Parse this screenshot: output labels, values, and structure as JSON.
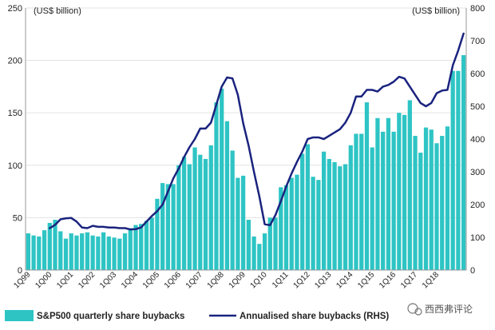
{
  "chart_data": {
    "type": "bar+line",
    "left_axis": {
      "unit_label": "(US$ billion)",
      "ylim": [
        0,
        250
      ],
      "ticks": [
        "0",
        "50",
        "100",
        "150",
        "200",
        "250"
      ]
    },
    "right_axis": {
      "unit_label": "(US$ billion)",
      "ylim": [
        0,
        800
      ],
      "ticks": [
        "0",
        "100",
        "200",
        "300",
        "400",
        "500",
        "600",
        "700",
        "800"
      ]
    },
    "x_tick_labels": [
      "1Q99",
      "1Q00",
      "1Q01",
      "1Q02",
      "1Q03",
      "1Q04",
      "1Q05",
      "1Q06",
      "1Q07",
      "1Q08",
      "1Q09",
      "1Q10",
      "1Q11",
      "1Q12",
      "1Q13",
      "1Q14",
      "1Q15",
      "1Q16",
      "1Q17",
      "1Q18"
    ],
    "series": [
      {
        "name": "S&P500 quarterly share buybacks",
        "kind": "bar",
        "axis": "left",
        "color": "#2ec4c4",
        "values": [
          35,
          33,
          32,
          38,
          45,
          48,
          37,
          30,
          35,
          33,
          35,
          36,
          33,
          32,
          36,
          32,
          31,
          30,
          35,
          40,
          43,
          44,
          47,
          50,
          68,
          83,
          82,
          82,
          100,
          108,
          101,
          117,
          110,
          106,
          119,
          160,
          173,
          142,
          114,
          88,
          90,
          48,
          32,
          25,
          35,
          50,
          50,
          79,
          81,
          88,
          91,
          111,
          120,
          89,
          86,
          113,
          106,
          103,
          99,
          101,
          119,
          130,
          130,
          160,
          117,
          145,
          132,
          145,
          132,
          150,
          148,
          162,
          128,
          112,
          136,
          134,
          121,
          128,
          137,
          190,
          190,
          205
        ]
      },
      {
        "name": "Annualised share buybacks (RHS)",
        "kind": "line",
        "axis": "right",
        "color": "#1a237e",
        "start_index": 4,
        "values": [
          128,
          138,
          155,
          158,
          159,
          148,
          130,
          128,
          135,
          132,
          132,
          130,
          130,
          128,
          128,
          124,
          125,
          130,
          148,
          165,
          180,
          200,
          240,
          280,
          310,
          345,
          375,
          400,
          432,
          432,
          450,
          505,
          560,
          588,
          585,
          535,
          448,
          380,
          300,
          225,
          140,
          137,
          168,
          210,
          255,
          295,
          330,
          362,
          400,
          405,
          405,
          400,
          410,
          420,
          430,
          450,
          480,
          530,
          530,
          550,
          550,
          545,
          560,
          565,
          575,
          590,
          585,
          560,
          535,
          510,
          500,
          510,
          540,
          548,
          550,
          625,
          670,
          722
        ]
      }
    ]
  },
  "watermark": "西西弗评论"
}
